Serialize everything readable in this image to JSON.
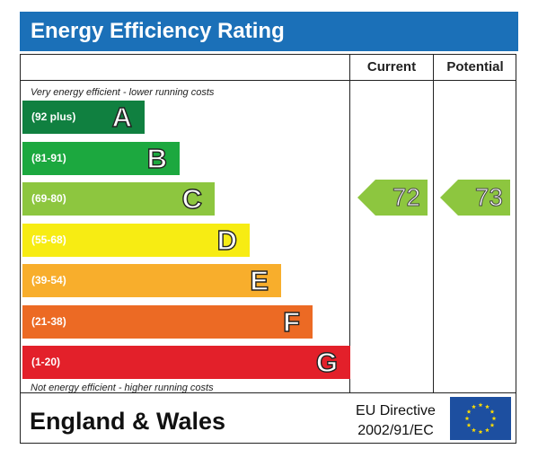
{
  "header": {
    "title": "Energy Efficiency Rating"
  },
  "columns": {
    "current": "Current",
    "potential": "Potential"
  },
  "notes": {
    "top": "Very energy efficient - lower running costs",
    "bottom": "Not energy efficient - higher running costs"
  },
  "chart_data": {
    "type": "bar",
    "title": "Energy Efficiency Rating",
    "bands": [
      {
        "letter": "A",
        "range": "(92 plus)",
        "color": "#108040"
      },
      {
        "letter": "B",
        "range": "(81-91)",
        "color": "#1ca83f"
      },
      {
        "letter": "C",
        "range": "(69-80)",
        "color": "#8dc63f"
      },
      {
        "letter": "D",
        "range": "(55-68)",
        "color": "#f7ec13"
      },
      {
        "letter": "E",
        "range": "(39-54)",
        "color": "#f8ae2c"
      },
      {
        "letter": "F",
        "range": "(21-38)",
        "color": "#ec6a24"
      },
      {
        "letter": "G",
        "range": "(1-20)",
        "color": "#e3202a"
      }
    ],
    "current": {
      "value": 72,
      "band": "C",
      "color": "#8dc63f"
    },
    "potential": {
      "value": 73,
      "band": "C",
      "color": "#8dc63f"
    }
  },
  "footer": {
    "country": "England & Wales",
    "directive_line1": "EU Directive",
    "directive_line2": "2002/91/EC"
  },
  "colors": {
    "header_bg": "#1b70b8",
    "eu_flag_bg": "#1d4fa0",
    "eu_star": "#ffdd00"
  }
}
